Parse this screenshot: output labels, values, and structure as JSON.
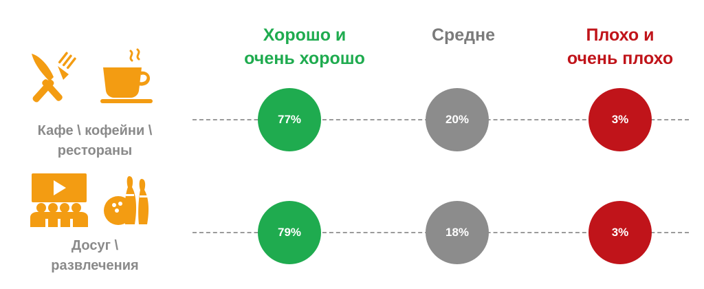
{
  "colors": {
    "good": "#1fab4f",
    "medium": "#8c8c8c",
    "bad": "#c0141a",
    "icon": "#f39c12"
  },
  "chart_data": {
    "type": "table",
    "columns": [
      {
        "key": "good",
        "label_lines": [
          "Хорошо и",
          "очень хорошо"
        ],
        "color": "#1fab4f"
      },
      {
        "key": "medium",
        "label_lines": [
          "Средне"
        ],
        "color": "#7a7a7a"
      },
      {
        "key": "bad",
        "label_lines": [
          "Плохо и",
          "очень плохо"
        ],
        "color": "#c0141a"
      }
    ],
    "rows": [
      {
        "label_lines": [
          "Кафе \\  кофейни \\",
          "рестораны"
        ],
        "icons": [
          "cutlery-icon",
          "coffee-cup-icon"
        ],
        "values": [
          77,
          20,
          3
        ],
        "value_labels": [
          "77%",
          "20%",
          "3%"
        ]
      },
      {
        "label_lines": [
          "Досуг \\",
          "развлечения"
        ],
        "icons": [
          "cinema-icon",
          "bowling-icon"
        ],
        "values": [
          79,
          18,
          3
        ],
        "value_labels": [
          "79%",
          "18%",
          "3%"
        ]
      }
    ]
  }
}
